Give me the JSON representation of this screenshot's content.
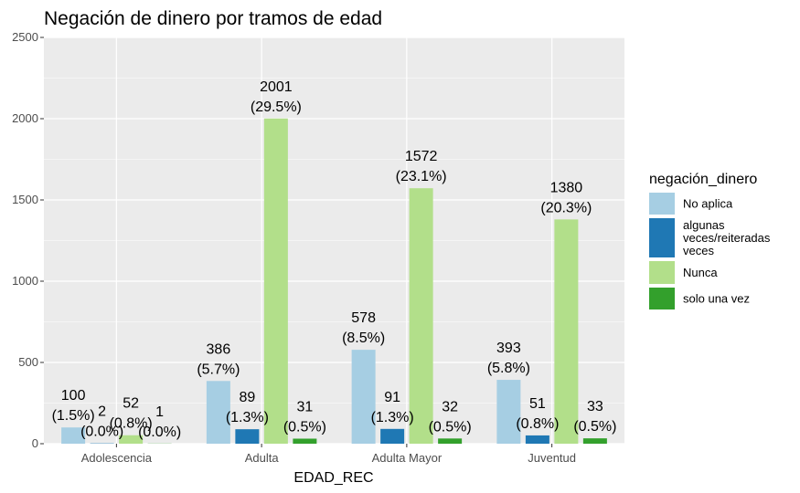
{
  "chart_data": {
    "type": "bar",
    "title": "Negación de dinero por tramos de edad",
    "xlabel": "EDAD_REC",
    "ylabel": "",
    "ylim": [
      0,
      2500
    ],
    "yticks": [
      0,
      500,
      1000,
      1500,
      2000,
      2500
    ],
    "grid": true,
    "legend_position": "right",
    "legend_title": "negación_dinero",
    "categories": [
      "Adolescencia",
      "Adulta",
      "Adulta Mayor",
      "Juventud"
    ],
    "series": [
      {
        "name": " No aplica",
        "legend_lines": [
          " No aplica"
        ],
        "color": "#a6cee3",
        "values": [
          100,
          386,
          578,
          393
        ],
        "percent_labels": [
          "(1.5%)",
          "(5.7%)",
          "(8.5%)",
          "(5.8%)"
        ]
      },
      {
        "name": "algunas veces/reiteradas veces",
        "legend_lines": [
          "algunas",
          "veces/reiteradas",
          "veces"
        ],
        "color": "#1f78b4",
        "values": [
          2,
          89,
          91,
          51
        ],
        "percent_labels": [
          "(0.0%)",
          "(1.3%)",
          "(1.3%)",
          "(0.8%)"
        ]
      },
      {
        "name": "Nunca",
        "legend_lines": [
          "Nunca"
        ],
        "color": "#b2df8a",
        "values": [
          52,
          2001,
          1572,
          1380
        ],
        "percent_labels": [
          "(0.8%)",
          "(29.5%)",
          "(23.1%)",
          "(20.3%)"
        ]
      },
      {
        "name": "solo una vez",
        "legend_lines": [
          "solo una vez"
        ],
        "color": "#33a02c",
        "values": [
          1,
          31,
          32,
          33
        ],
        "percent_labels": [
          "(0.0%)",
          "(0.5%)",
          "(0.5%)",
          "(0.5%)"
        ]
      }
    ]
  }
}
